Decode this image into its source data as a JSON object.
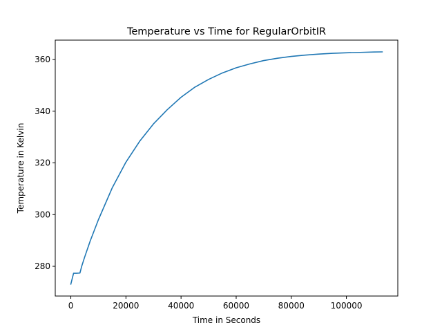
{
  "chart_data": {
    "type": "line",
    "title": "Temperature vs Time for RegularOrbitIR",
    "xlabel": "Time in Seconds",
    "ylabel": "Temperature in Kelvin",
    "xlim": [
      -5650,
      118650
    ],
    "ylim": [
      268.5,
      367.5
    ],
    "xticks": [
      0,
      20000,
      40000,
      60000,
      80000,
      100000
    ],
    "xtick_labels": [
      "0",
      "20000",
      "40000",
      "60000",
      "80000",
      "100000"
    ],
    "yticks": [
      280,
      300,
      320,
      340,
      360
    ],
    "ytick_labels": [
      "280",
      "300",
      "320",
      "340",
      "360"
    ],
    "grid": false,
    "legend": "none",
    "series": [
      {
        "color": "#1f77b4",
        "x": [
          0,
          1000,
          2000,
          3300,
          4000,
          5000,
          7000,
          10000,
          15000,
          20000,
          25000,
          30000,
          35000,
          40000,
          45000,
          50000,
          55000,
          60000,
          65000,
          70000,
          75000,
          80000,
          85000,
          90000,
          95000,
          100000,
          105000,
          110000,
          113000
        ],
        "y": [
          273.1,
          277.3,
          277.3,
          277.4,
          280.2,
          283.5,
          289.7,
          298.0,
          310.3,
          320.3,
          328.4,
          335.1,
          340.6,
          345.4,
          349.3,
          352.3,
          354.8,
          356.8,
          358.3,
          359.6,
          360.5,
          361.2,
          361.7,
          362.1,
          362.4,
          362.6,
          362.75,
          362.9,
          362.95
        ]
      }
    ]
  }
}
